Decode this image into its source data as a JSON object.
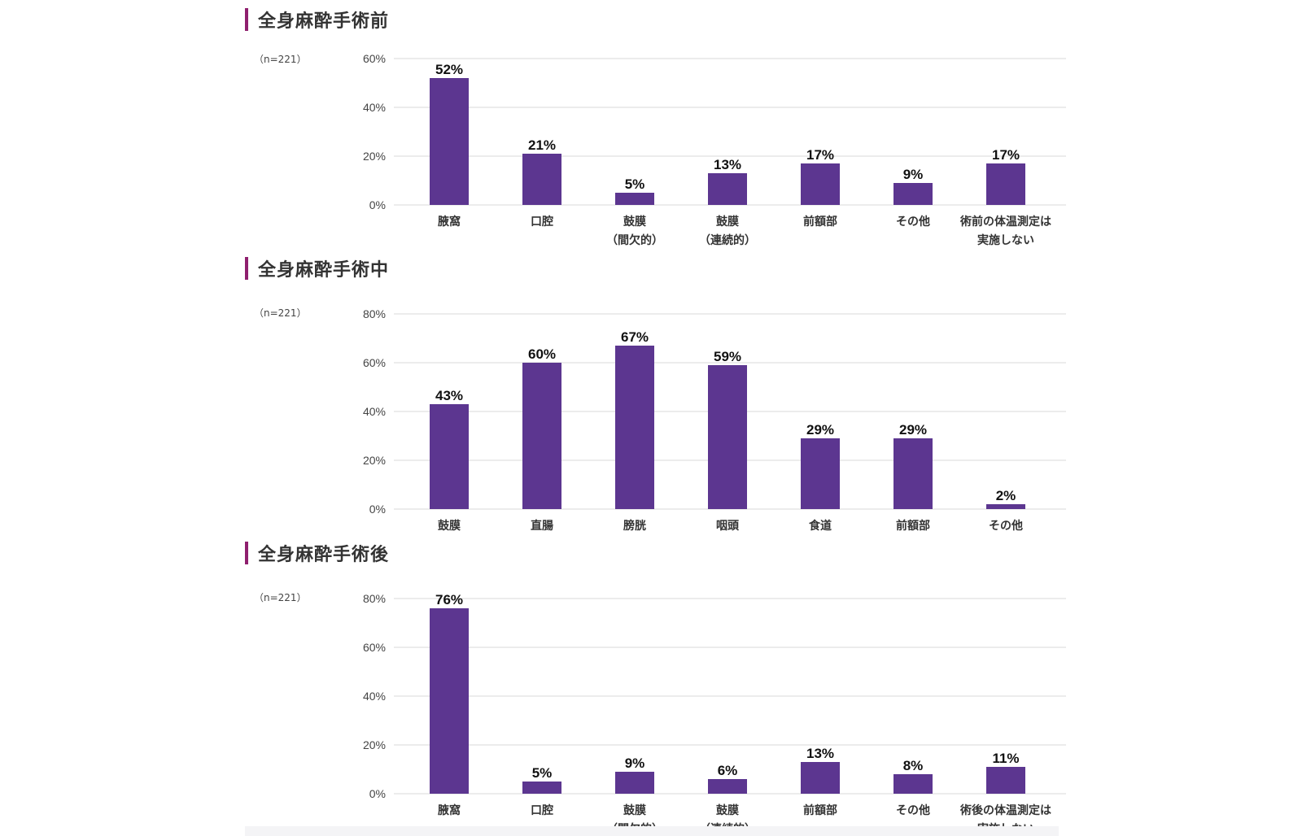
{
  "sections": [
    {
      "title": "全身麻酔手術前",
      "sample": "（n=221）",
      "chart": {
        "type": "bar",
        "ylim": [
          0,
          60
        ],
        "yticks": [
          0,
          20,
          40,
          60
        ],
        "categories": [
          [
            "腋窩"
          ],
          [
            "口腔"
          ],
          [
            "鼓膜",
            "（間欠的）"
          ],
          [
            "鼓膜",
            "（連続的）"
          ],
          [
            "前額部"
          ],
          [
            "その他"
          ],
          [
            "術前の体温測定は",
            "実施しない"
          ]
        ],
        "values": [
          52,
          21,
          5,
          13,
          17,
          9,
          17
        ],
        "labels": [
          "52%",
          "21%",
          "5%",
          "13%",
          "17%",
          "9%",
          "17%"
        ]
      }
    },
    {
      "title": "全身麻酔手術中",
      "sample": "（n=221）",
      "chart": {
        "type": "bar",
        "ylim": [
          0,
          80
        ],
        "yticks": [
          0,
          20,
          40,
          60,
          80
        ],
        "categories": [
          [
            "鼓膜"
          ],
          [
            "直腸"
          ],
          [
            "膀胱"
          ],
          [
            "咽頭"
          ],
          [
            "食道"
          ],
          [
            "前額部"
          ],
          [
            "その他"
          ]
        ],
        "values": [
          43,
          60,
          67,
          59,
          29,
          29,
          2
        ],
        "labels": [
          "43%",
          "60%",
          "67%",
          "59%",
          "29%",
          "29%",
          "2%"
        ]
      }
    },
    {
      "title": "全身麻酔手術後",
      "sample": "（n=221）",
      "chart": {
        "type": "bar",
        "ylim": [
          0,
          80
        ],
        "yticks": [
          0,
          20,
          40,
          60,
          80
        ],
        "categories": [
          [
            "腋窩"
          ],
          [
            "口腔"
          ],
          [
            "鼓膜",
            "（間欠的）"
          ],
          [
            "鼓膜",
            "（連続的）"
          ],
          [
            "前額部"
          ],
          [
            "その他"
          ],
          [
            "術後の体温測定は",
            "実施しない"
          ]
        ],
        "values": [
          76,
          5,
          9,
          6,
          13,
          8,
          11
        ],
        "labels": [
          "76%",
          "5%",
          "9%",
          "6%",
          "13%",
          "8%",
          "11%"
        ]
      }
    }
  ],
  "chart_data": [
    {
      "type": "bar",
      "title": "全身麻酔手術前",
      "categories": [
        "腋窩",
        "口腔",
        "鼓膜（間欠的）",
        "鼓膜（連続的）",
        "前額部",
        "その他",
        "術前の体温測定は実施しない"
      ],
      "values": [
        52,
        21,
        5,
        13,
        17,
        9,
        17
      ],
      "ylim": [
        0,
        60
      ],
      "ytick_labels": [
        "0%",
        "20%",
        "40%",
        "60%"
      ],
      "grid": true
    },
    {
      "type": "bar",
      "title": "全身麻酔手術中",
      "categories": [
        "鼓膜",
        "直腸",
        "膀胱",
        "咽頭",
        "食道",
        "前額部",
        "その他"
      ],
      "values": [
        43,
        60,
        67,
        59,
        29,
        29,
        2
      ],
      "ylim": [
        0,
        80
      ],
      "ytick_labels": [
        "0%",
        "20%",
        "40%",
        "60%",
        "80%"
      ],
      "grid": true
    },
    {
      "type": "bar",
      "title": "全身麻酔手術後",
      "categories": [
        "腋窩",
        "口腔",
        "鼓膜（間欠的）",
        "鼓膜（連続的）",
        "前額部",
        "その他",
        "術後の体温測定は実施しない"
      ],
      "values": [
        76,
        5,
        9,
        6,
        13,
        8,
        11
      ],
      "ylim": [
        0,
        80
      ],
      "ytick_labels": [
        "0%",
        "20%",
        "40%",
        "60%",
        "80%"
      ],
      "grid": true
    }
  ]
}
